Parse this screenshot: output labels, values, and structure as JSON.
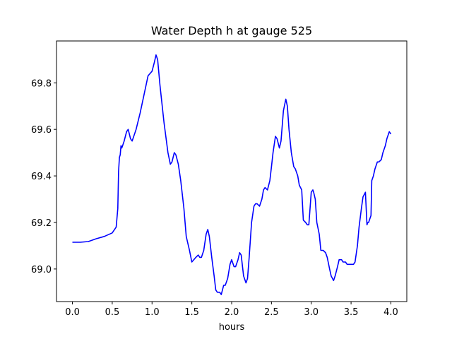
{
  "chart_data": {
    "type": "line",
    "title": "Water Depth h at gauge 525",
    "xlabel": "hours",
    "ylabel": "",
    "xlim": [
      -0.2,
      4.2
    ],
    "ylim": [
      68.86,
      69.98
    ],
    "xticks": [
      0.0,
      0.5,
      1.0,
      1.5,
      2.0,
      2.5,
      3.0,
      3.5,
      4.0
    ],
    "xtick_labels": [
      "0.0",
      "0.5",
      "1.0",
      "1.5",
      "2.0",
      "2.5",
      "3.0",
      "3.5",
      "4.0"
    ],
    "yticks": [
      69.0,
      69.2,
      69.4,
      69.6,
      69.8
    ],
    "ytick_labels": [
      "69.0",
      "69.2",
      "69.4",
      "69.6",
      "69.8"
    ],
    "grid": false,
    "legend": "none",
    "series": [
      {
        "color": "#0000ff",
        "x": [
          0.0,
          0.1,
          0.2,
          0.3,
          0.4,
          0.5,
          0.55,
          0.57,
          0.58,
          0.59,
          0.6,
          0.61,
          0.62,
          0.63,
          0.65,
          0.68,
          0.7,
          0.73,
          0.75,
          0.8,
          0.85,
          0.9,
          0.95,
          1.0,
          1.03,
          1.05,
          1.07,
          1.1,
          1.15,
          1.2,
          1.23,
          1.25,
          1.28,
          1.3,
          1.33,
          1.36,
          1.4,
          1.43,
          1.47,
          1.5,
          1.55,
          1.58,
          1.6,
          1.62,
          1.65,
          1.68,
          1.7,
          1.72,
          1.75,
          1.78,
          1.8,
          1.82,
          1.85,
          1.87,
          1.9,
          1.92,
          1.95,
          1.98,
          2.0,
          2.03,
          2.05,
          2.08,
          2.1,
          2.12,
          2.15,
          2.18,
          2.2,
          2.22,
          2.25,
          2.28,
          2.3,
          2.32,
          2.35,
          2.38,
          2.4,
          2.42,
          2.45,
          2.48,
          2.5,
          2.52,
          2.55,
          2.57,
          2.6,
          2.62,
          2.65,
          2.68,
          2.7,
          2.72,
          2.75,
          2.78,
          2.8,
          2.83,
          2.85,
          2.88,
          2.9,
          2.93,
          2.95,
          2.96,
          2.97,
          3.0,
          3.02,
          3.03,
          3.05,
          3.07,
          3.1,
          3.12,
          3.13,
          3.15,
          3.18,
          3.2,
          3.23,
          3.25,
          3.28,
          3.3,
          3.33,
          3.35,
          3.38,
          3.4,
          3.43,
          3.45,
          3.48,
          3.5,
          3.53,
          3.55,
          3.58,
          3.6,
          3.63,
          3.65,
          3.68,
          3.7,
          3.71,
          3.72,
          3.75,
          3.76,
          3.78,
          3.8,
          3.83,
          3.85,
          3.88,
          3.9,
          3.93,
          3.95,
          3.98,
          4.0
        ],
        "y": [
          69.115,
          69.115,
          69.118,
          69.13,
          69.14,
          69.155,
          69.18,
          69.26,
          69.42,
          69.48,
          69.49,
          69.53,
          69.52,
          69.53,
          69.55,
          69.59,
          69.6,
          69.56,
          69.55,
          69.6,
          69.67,
          69.75,
          69.83,
          69.85,
          69.89,
          69.92,
          69.9,
          69.79,
          69.63,
          69.5,
          69.45,
          69.46,
          69.5,
          69.49,
          69.45,
          69.38,
          69.26,
          69.14,
          69.08,
          69.03,
          69.05,
          69.06,
          69.05,
          69.05,
          69.08,
          69.15,
          69.17,
          69.14,
          69.05,
          68.97,
          68.91,
          68.9,
          68.9,
          68.89,
          68.93,
          68.93,
          68.96,
          69.02,
          69.04,
          69.01,
          69.01,
          69.04,
          69.07,
          69.06,
          68.97,
          68.94,
          68.96,
          69.05,
          69.2,
          69.27,
          69.28,
          69.28,
          69.27,
          69.3,
          69.34,
          69.35,
          69.34,
          69.38,
          69.44,
          69.5,
          69.57,
          69.56,
          69.52,
          69.55,
          69.68,
          69.73,
          69.7,
          69.6,
          69.5,
          69.44,
          69.43,
          69.4,
          69.36,
          69.34,
          69.21,
          69.2,
          69.19,
          69.19,
          69.19,
          69.33,
          69.34,
          69.33,
          69.3,
          69.2,
          69.15,
          69.08,
          69.08,
          69.08,
          69.07,
          69.05,
          69.0,
          68.97,
          68.95,
          68.97,
          69.01,
          69.04,
          69.04,
          69.03,
          69.03,
          69.02,
          69.02,
          69.02,
          69.02,
          69.03,
          69.1,
          69.18,
          69.26,
          69.31,
          69.33,
          69.19,
          69.2,
          69.2,
          69.23,
          69.38,
          69.4,
          69.43,
          69.46,
          69.46,
          69.47,
          69.5,
          69.53,
          69.56,
          69.59,
          69.58
        ]
      }
    ]
  }
}
